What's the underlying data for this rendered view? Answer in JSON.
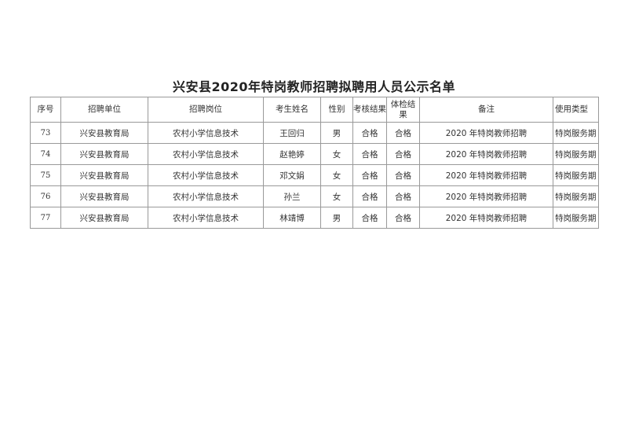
{
  "title": "兴安县2020年特岗教师招聘拟聘用人员公示名单",
  "table": {
    "headers": [
      "序号",
      "招聘单位",
      "招聘岗位",
      "考生姓名",
      "性别",
      "考核结果",
      "体检结果",
      "备注",
      "使用类型"
    ],
    "rows": [
      [
        "73",
        "兴安县教育局",
        "农村小学信息技术",
        "王回归",
        "男",
        "合格",
        "合格",
        "2020 年特岗教师招聘",
        "特岗服务期"
      ],
      [
        "74",
        "兴安县教育局",
        "农村小学信息技术",
        "赵艳婷",
        "女",
        "合格",
        "合格",
        "2020 年特岗教师招聘",
        "特岗服务期"
      ],
      [
        "75",
        "兴安县教育局",
        "农村小学信息技术",
        "邓文娟",
        "女",
        "合格",
        "合格",
        "2020 年特岗教师招聘",
        "特岗服务期"
      ],
      [
        "76",
        "兴安县教育局",
        "农村小学信息技术",
        "孙兰",
        "女",
        "合格",
        "合格",
        "2020 年特岗教师招聘",
        "特岗服务期"
      ],
      [
        "77",
        "兴安县教育局",
        "农村小学信息技术",
        "林靖博",
        "男",
        "合格",
        "合格",
        "2020 年特岗教师招聘",
        "特岗服务期"
      ]
    ]
  }
}
